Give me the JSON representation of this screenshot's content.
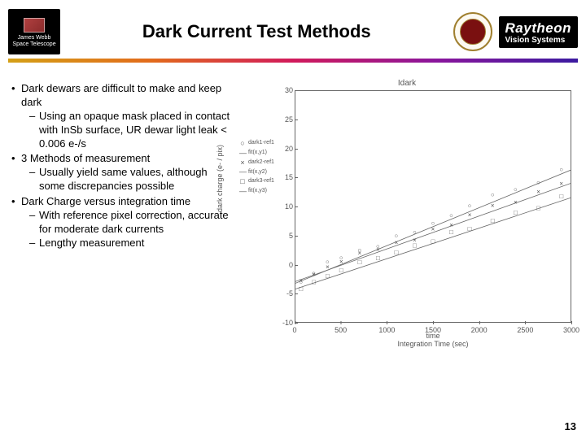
{
  "header": {
    "title": "Dark Current Test Methods",
    "jwst_line1": "James Webb",
    "jwst_line2": "Space Telescope",
    "raytheon_main": "Raytheon",
    "raytheon_sub": "Vision Systems"
  },
  "gradient_colors": [
    "#d4a017",
    "#e26b1b",
    "#d11a5b",
    "#8a169c",
    "#3b1aa0"
  ],
  "bullets": [
    {
      "text": "Dark dewars are difficult to make and keep dark",
      "sub": [
        "Using an opaque mask placed in contact with InSb surface, UR dewar light leak < 0.006 e-/s"
      ]
    },
    {
      "text": "3 Methods of measurement",
      "sub": [
        "Usually yield same values, although some discrepancies possible"
      ]
    },
    {
      "text": "Dark Charge versus integration time",
      "sub": [
        "With reference pixel correction, accurate for moderate dark currents",
        "Lengthy measurement"
      ]
    }
  ],
  "chart": {
    "title": "Idark",
    "xlabel_line1": "time",
    "xlabel_line2": "Integration Time (sec)",
    "ylabel": "dark charge (e- / pix)",
    "type": "scatter-with-fit",
    "xlim": [
      0,
      3000
    ],
    "ylim": [
      -10,
      30
    ],
    "xtick_step": 500,
    "ytick_step": 5,
    "background_color": "#ffffff",
    "axis_color": "#666666",
    "text_color": "#555555",
    "tick_labels_x": [
      "0",
      "500",
      "1000",
      "1500",
      "2000",
      "2500",
      "3000"
    ],
    "tick_labels_y": [
      "-10",
      "-5",
      "0",
      "5",
      "10",
      "15",
      "20",
      "25",
      "30"
    ],
    "legend": [
      {
        "marker": "○",
        "label": "dark1-ref1"
      },
      {
        "marker": "",
        "label": "fit(x,y1)"
      },
      {
        "marker": "×",
        "label": "dark2-ref1"
      },
      {
        "marker": "",
        "label": "fit(x,y2)"
      },
      {
        "marker": "□",
        "label": "dark3-ref1"
      },
      {
        "marker": "",
        "label": "fit(x,y3)"
      }
    ],
    "series": [
      {
        "name": "s1",
        "marker": "○",
        "x": [
          60,
          200,
          350,
          500,
          700,
          900,
          1100,
          1300,
          1500,
          1700,
          1900,
          2150,
          2400,
          2650,
          2900
        ],
        "y": [
          -3,
          -1.5,
          0.5,
          1.2,
          2.5,
          3.2,
          5.0,
          5.6,
          7.2,
          8.5,
          10.2,
          12.1,
          13.0,
          14.2,
          16.5
        ],
        "fit_y0": -3.3,
        "fit_y1": 16.3
      },
      {
        "name": "s2",
        "marker": "×",
        "x": [
          60,
          200,
          350,
          500,
          700,
          900,
          1100,
          1300,
          1500,
          1700,
          1900,
          2150,
          2400,
          2650,
          2900
        ],
        "y": [
          -2.8,
          -1.7,
          -0.4,
          0.5,
          2.0,
          2.6,
          3.8,
          4.2,
          6.1,
          6.8,
          8.6,
          10.2,
          10.8,
          12.6,
          14.0
        ],
        "fit_y0": -3.0,
        "fit_y1": 14.0
      },
      {
        "name": "s3",
        "marker": "□",
        "x": [
          60,
          200,
          350,
          500,
          700,
          900,
          1100,
          1300,
          1500,
          1700,
          1900,
          2150,
          2400,
          2650,
          2900
        ],
        "y": [
          -4.2,
          -3.0,
          -2.0,
          -1.0,
          0.4,
          1.1,
          2.1,
          3.3,
          4.0,
          5.6,
          6.2,
          7.6,
          9.0,
          9.8,
          11.8
        ],
        "fit_y0": -4.3,
        "fit_y1": 11.5
      }
    ]
  },
  "page_number": "13"
}
